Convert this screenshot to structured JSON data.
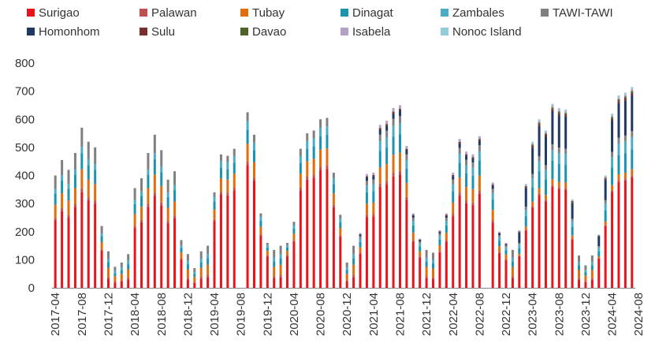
{
  "chart_data": {
    "type": "bar",
    "stacked": true,
    "title": "",
    "xlabel": "",
    "ylabel": "",
    "ylim": [
      0,
      800
    ],
    "yticks": [
      0,
      100,
      200,
      300,
      400,
      500,
      600,
      700,
      800
    ],
    "grid": false,
    "legend": "top",
    "xtick_labels": [
      "2017-04",
      "2017-08",
      "2017-12",
      "2018-04",
      "2018-08",
      "2018-12",
      "2019-04",
      "2019-08",
      "2019-12",
      "2020-04",
      "2020-08",
      "2020-12",
      "2021-04",
      "2021-08",
      "2021-12",
      "2022-04",
      "2022-08",
      "2022-12",
      "2023-04",
      "2023-08",
      "2023-12",
      "2024-04",
      "2024-08"
    ],
    "series": [
      {
        "name": "Surigao",
        "color": "#e8141b"
      },
      {
        "name": "Palawan",
        "color": "#c0504d"
      },
      {
        "name": "Tubay",
        "color": "#e46c0a"
      },
      {
        "name": "Dinagat",
        "color": "#1a93b0"
      },
      {
        "name": "Zambales",
        "color": "#4bacc6"
      },
      {
        "name": "TAWI-TAWI",
        "color": "#808080"
      },
      {
        "name": "Homonhom",
        "color": "#1f3864"
      },
      {
        "name": "Sulu",
        "color": "#7b2c2c"
      },
      {
        "name": "Davao",
        "color": "#4f6228"
      },
      {
        "name": "Isabela",
        "color": "#b3a2c7"
      },
      {
        "name": "Nonoc Island",
        "color": "#93cddd"
      }
    ],
    "totals": [
      400,
      455,
      420,
      480,
      570,
      520,
      500,
      220,
      130,
      75,
      90,
      120,
      355,
      390,
      480,
      545,
      490,
      385,
      415,
      170,
      120,
      70,
      130,
      150,
      340,
      475,
      470,
      495,
      0,
      625,
      545,
      265,
      160,
      135,
      150,
      160,
      235,
      495,
      550,
      560,
      600,
      605,
      410,
      260,
      90,
      150,
      195,
      405,
      410,
      580,
      595,
      640,
      650,
      505,
      265,
      175,
      135,
      125,
      205,
      265,
      410,
      530,
      485,
      475,
      540,
      0,
      375,
      200,
      160,
      135,
      205,
      370,
      520,
      600,
      560,
      655,
      640,
      635,
      315,
      115,
      80,
      115,
      190,
      400,
      620,
      685,
      695,
      715
    ]
  }
}
